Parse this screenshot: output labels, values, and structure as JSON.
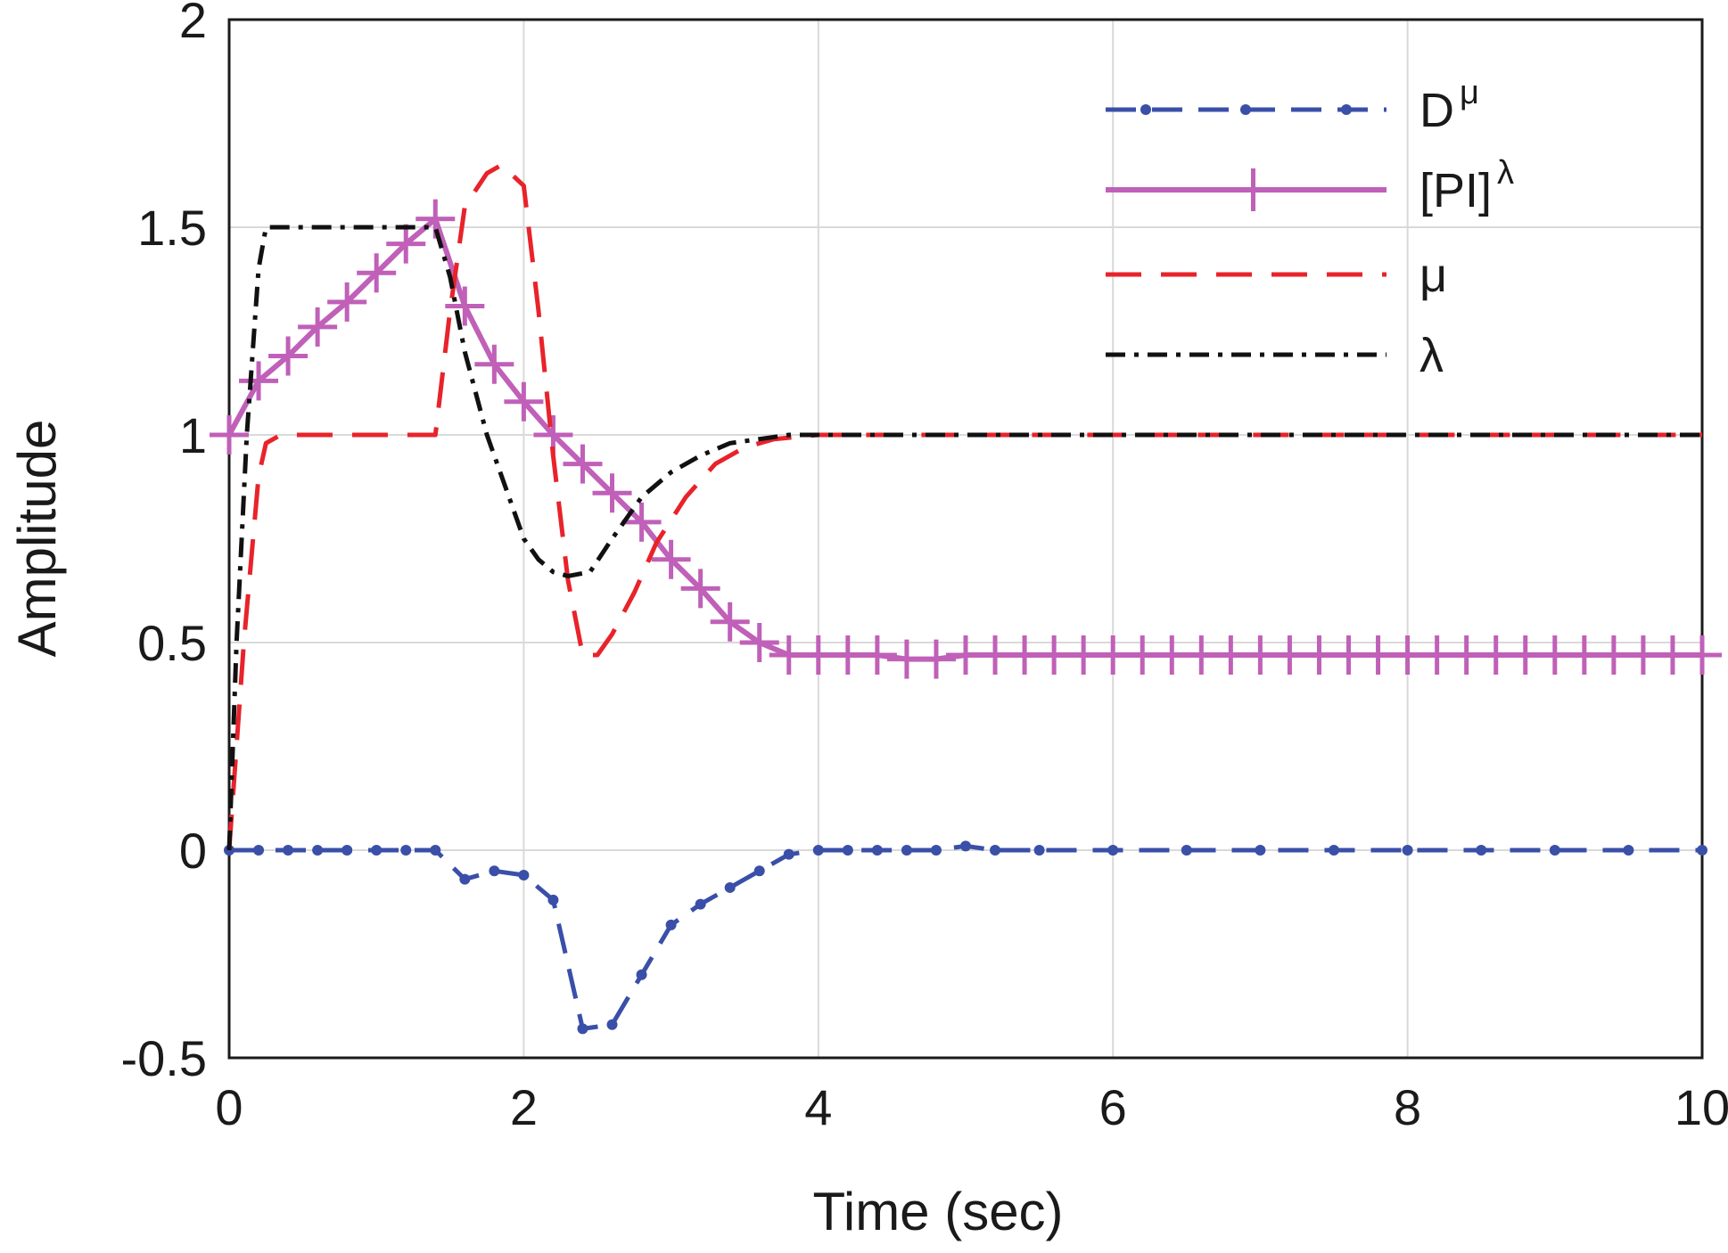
{
  "chart_data": {
    "type": "line",
    "title": "",
    "xlabel": "Time (sec)",
    "ylabel": "Amplitude",
    "xlim": [
      0,
      10
    ],
    "ylim": [
      -0.5,
      2
    ],
    "xticks": [
      0,
      2,
      4,
      6,
      8,
      10
    ],
    "xtick_labels": [
      "0",
      "2",
      "4",
      "6",
      "8",
      "10"
    ],
    "yticks": [
      -0.5,
      0,
      0.5,
      1,
      1.5,
      2
    ],
    "ytick_labels": [
      "-0.5",
      "0",
      "0.5",
      "1",
      "1.5",
      "2"
    ],
    "grid": true,
    "legend_position": "top-right",
    "series": [
      {
        "name": "D^μ",
        "label_base": "D",
        "label_sup": "μ",
        "color": "#3a4fa8",
        "style": "dashed-dots",
        "x": [
          0,
          0.2,
          0.4,
          0.6,
          0.8,
          1.0,
          1.2,
          1.4,
          1.6,
          1.8,
          2.0,
          2.2,
          2.4,
          2.6,
          2.8,
          3.0,
          3.2,
          3.4,
          3.6,
          3.8,
          4.0,
          4.2,
          4.4,
          4.6,
          4.8,
          5.0,
          5.2,
          5.5,
          6,
          6.5,
          7,
          7.5,
          8,
          8.5,
          9,
          9.5,
          10
        ],
        "y": [
          0,
          0,
          0,
          0,
          0,
          0,
          0,
          0,
          -0.07,
          -0.05,
          -0.06,
          -0.12,
          -0.43,
          -0.42,
          -0.3,
          -0.18,
          -0.13,
          -0.09,
          -0.05,
          -0.01,
          0,
          0,
          0,
          0,
          0,
          0.01,
          0,
          0,
          0,
          0,
          0,
          0,
          0,
          0,
          0,
          0,
          0
        ]
      },
      {
        "name": "[PI]^λ",
        "label_base": "[PI]",
        "label_sup": "λ",
        "color": "#c060b8",
        "style": "solid-plus",
        "x": [
          0,
          0.2,
          0.4,
          0.6,
          0.8,
          1.0,
          1.2,
          1.4,
          1.6,
          1.8,
          2.0,
          2.2,
          2.4,
          2.6,
          2.8,
          3.0,
          3.2,
          3.4,
          3.6,
          3.8,
          4.0,
          4.2,
          4.4,
          4.6,
          4.8,
          5.0,
          5.2,
          5.4,
          5.6,
          5.8,
          6.0,
          6.2,
          6.4,
          6.6,
          6.8,
          7.0,
          7.2,
          7.4,
          7.6,
          7.8,
          8.0,
          8.2,
          8.4,
          8.6,
          8.8,
          9.0,
          9.2,
          9.4,
          9.6,
          9.8,
          10.0
        ],
        "y": [
          1.0,
          1.13,
          1.19,
          1.26,
          1.32,
          1.39,
          1.46,
          1.52,
          1.31,
          1.17,
          1.08,
          1.0,
          0.93,
          0.86,
          0.79,
          0.7,
          0.63,
          0.55,
          0.5,
          0.47,
          0.47,
          0.47,
          0.47,
          0.46,
          0.46,
          0.47,
          0.47,
          0.47,
          0.47,
          0.47,
          0.47,
          0.47,
          0.47,
          0.47,
          0.47,
          0.47,
          0.47,
          0.47,
          0.47,
          0.47,
          0.47,
          0.47,
          0.47,
          0.47,
          0.47,
          0.47,
          0.47,
          0.47,
          0.47,
          0.47,
          0.47
        ]
      },
      {
        "name": "μ",
        "label_base": "μ",
        "label_sup": "",
        "color": "#e8232a",
        "style": "dashed",
        "x": [
          0,
          0.1,
          0.2,
          0.25,
          0.35,
          1.4,
          1.5,
          1.6,
          1.75,
          1.85,
          2.0,
          2.1,
          2.2,
          2.3,
          2.4,
          2.5,
          2.6,
          2.75,
          2.9,
          3.1,
          3.3,
          3.5,
          3.7,
          4.0,
          6,
          8,
          10
        ],
        "y": [
          0,
          0.5,
          0.9,
          0.98,
          1.0,
          1.0,
          1.3,
          1.55,
          1.63,
          1.65,
          1.6,
          1.3,
          0.95,
          0.65,
          0.47,
          0.47,
          0.52,
          0.62,
          0.74,
          0.85,
          0.93,
          0.97,
          0.99,
          1.0,
          1.0,
          1.0,
          1.0
        ]
      },
      {
        "name": "λ",
        "label_base": "λ",
        "label_sup": "",
        "color": "#111111",
        "style": "dash-dot",
        "x": [
          0,
          0.05,
          0.12,
          0.2,
          0.25,
          0.35,
          1.4,
          1.5,
          1.6,
          1.75,
          1.9,
          2.0,
          2.1,
          2.2,
          2.3,
          2.45,
          2.6,
          2.8,
          3.0,
          3.2,
          3.4,
          3.6,
          3.8,
          4.0,
          6,
          8,
          10
        ],
        "y": [
          0,
          0.5,
          1.0,
          1.4,
          1.5,
          1.5,
          1.5,
          1.38,
          1.2,
          1.0,
          0.85,
          0.75,
          0.7,
          0.67,
          0.66,
          0.67,
          0.75,
          0.85,
          0.91,
          0.95,
          0.98,
          0.99,
          1.0,
          1.0,
          1.0,
          1.0,
          1.0
        ]
      }
    ]
  }
}
